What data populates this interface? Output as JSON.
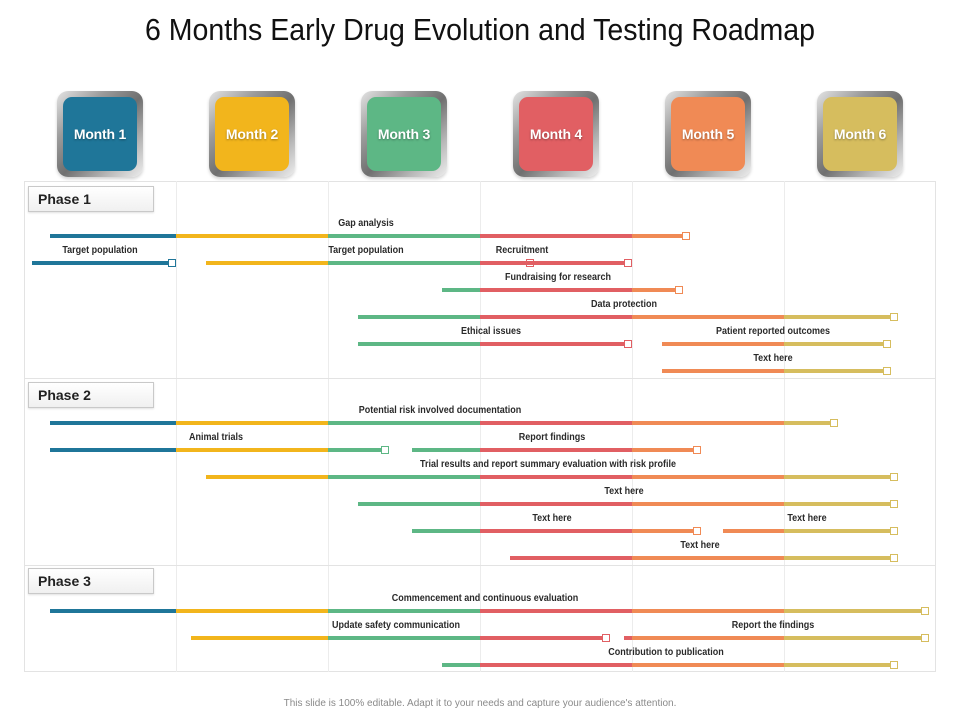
{
  "title": "6 Months Early Drug Evolution and Testing Roadmap",
  "months": [
    {
      "label": "Month 1",
      "color": "#1f7699"
    },
    {
      "label": "Month 2",
      "color": "#f2b51c"
    },
    {
      "label": "Month 3",
      "color": "#5db785"
    },
    {
      "label": "Month 4",
      "color": "#e15f63"
    },
    {
      "label": "Month 5",
      "color": "#f08a55"
    },
    {
      "label": "Month 6",
      "color": "#d6bd5e"
    }
  ],
  "phases": [
    {
      "label": "Phase 1"
    },
    {
      "label": "Phase 2"
    },
    {
      "label": "Phase 3"
    }
  ],
  "tasks": [
    {
      "phase": 0,
      "label": "Gap analysis",
      "start": 0.17,
      "end": 4.33
    },
    {
      "phase": 0,
      "label": "Target population",
      "start": 0.05,
      "end": 0.95
    },
    {
      "phase": 0,
      "label": "Target population",
      "start": 1.2,
      "end": 3.3
    },
    {
      "phase": 0,
      "label": "Recruitment",
      "start": 2.6,
      "end": 3.95
    },
    {
      "phase": 0,
      "label": "Fundraising for research",
      "start": 2.75,
      "end": 4.28
    },
    {
      "phase": 0,
      "label": "Data protection",
      "start": 2.2,
      "end": 5.7
    },
    {
      "phase": 0,
      "label": "Ethical issues",
      "start": 2.2,
      "end": 3.95
    },
    {
      "phase": 0,
      "label": "Patient reported outcomes",
      "start": 4.2,
      "end": 5.65
    },
    {
      "phase": 0,
      "label": "Text here",
      "start": 4.2,
      "end": 5.65
    },
    {
      "phase": 1,
      "label": "Potential risk involved documentation",
      "start": 0.17,
      "end": 5.3
    },
    {
      "phase": 1,
      "label": "Animal trials",
      "start": 0.17,
      "end": 2.35
    },
    {
      "phase": 1,
      "label": "Report findings",
      "start": 2.55,
      "end": 4.4
    },
    {
      "phase": 1,
      "label": "Trial results and report summary evaluation with risk profile",
      "start": 1.2,
      "end": 5.7
    },
    {
      "phase": 1,
      "label": "Text here",
      "start": 2.2,
      "end": 5.7
    },
    {
      "phase": 1,
      "label": "Text here",
      "start": 2.55,
      "end": 4.4
    },
    {
      "phase": 1,
      "label": "Text here",
      "start": 4.6,
      "end": 5.7
    },
    {
      "phase": 1,
      "label": "Text here",
      "start": 3.2,
      "end": 5.7
    },
    {
      "phase": 2,
      "label": "Commencement and continuous evaluation",
      "start": 0.17,
      "end": 5.9
    },
    {
      "phase": 2,
      "label": "Update safety communication",
      "start": 1.1,
      "end": 3.8
    },
    {
      "phase": 2,
      "label": "Report the findings",
      "start": 3.95,
      "end": 5.9
    },
    {
      "phase": 2,
      "label": "Contribution to publication",
      "start": 2.75,
      "end": 5.7
    }
  ],
  "footer": "This slide is 100% editable. Adapt it to your needs and capture your audience's attention."
}
